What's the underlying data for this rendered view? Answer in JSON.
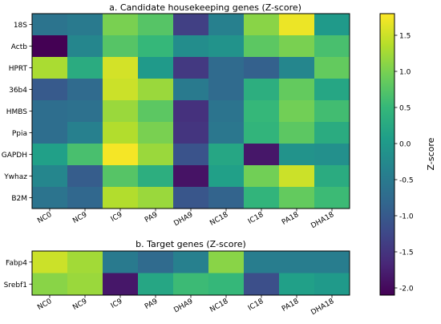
{
  "colors": {
    "scale": [
      "#440154",
      "#482878",
      "#3e4989",
      "#31688e",
      "#26828e",
      "#1f9e89",
      "#35b779",
      "#6ece58",
      "#b5de2b",
      "#fde725"
    ],
    "frame": "#000000"
  },
  "chart_data": [
    {
      "type": "heatmap",
      "title": "a. Candidate housekeeping genes (Z-score)",
      "columns": [
        "NC0",
        "NC9",
        "IC9",
        "PA9",
        "DHA9",
        "NC18",
        "IC18",
        "PA18",
        "DHA18"
      ],
      "rows": [
        "18S",
        "Actb",
        "HPRT",
        "36b4",
        "HMBS",
        "Ppia",
        "GAPDH",
        "Ywhaz",
        "B2M"
      ],
      "values": [
        [
          -0.6,
          -0.5,
          1.0,
          0.75,
          -1.35,
          -0.4,
          1.1,
          1.7,
          0.0
        ],
        [
          -2.1,
          -0.3,
          0.75,
          0.5,
          -0.2,
          -0.1,
          0.8,
          1.0,
          0.65
        ],
        [
          1.3,
          0.3,
          1.55,
          0.0,
          -1.45,
          -0.75,
          -0.9,
          -0.3,
          0.85
        ],
        [
          -1.0,
          -0.75,
          1.5,
          1.2,
          -0.5,
          -0.75,
          0.35,
          0.85,
          0.2
        ],
        [
          -0.7,
          -0.65,
          1.2,
          0.8,
          -1.55,
          -0.6,
          0.5,
          0.95,
          0.6
        ],
        [
          -0.7,
          -0.4,
          1.35,
          1.0,
          -1.5,
          -0.55,
          0.45,
          0.8,
          0.3
        ],
        [
          0.1,
          0.65,
          1.75,
          1.2,
          -1.1,
          0.2,
          -1.85,
          -0.1,
          -0.15
        ],
        [
          -0.3,
          -0.95,
          0.75,
          0.35,
          -1.9,
          0.1,
          0.95,
          1.5,
          0.3
        ],
        [
          -0.6,
          -0.8,
          1.35,
          1.2,
          -1.05,
          -0.85,
          0.45,
          0.85,
          0.55
        ]
      ],
      "vmin": -2.1,
      "vmax": 1.8
    },
    {
      "type": "heatmap",
      "title": "b. Target genes (Z-score)",
      "columns": [
        "NC0",
        "NC9",
        "IC9",
        "PA9",
        "DHA9",
        "NC18",
        "IC18",
        "PA18",
        "DHA18"
      ],
      "rows": [
        "Fabp4",
        "Srebf1"
      ],
      "values": [
        [
          1.5,
          1.25,
          -0.5,
          -0.75,
          -0.4,
          1.1,
          -0.45,
          -0.45,
          -0.45
        ],
        [
          1.1,
          1.2,
          -1.85,
          0.2,
          0.55,
          0.5,
          -1.15,
          0.1,
          0.0
        ]
      ],
      "vmin": -2.1,
      "vmax": 1.8
    }
  ],
  "colorbar": {
    "label": "Z-score",
    "ticks": [
      "-2.0",
      "-1.5",
      "-1.0",
      "-0.5",
      "0.0",
      "0.5",
      "1.0",
      "1.5"
    ],
    "tick_values": [
      -2.0,
      -1.5,
      -1.0,
      -0.5,
      0.0,
      0.5,
      1.0,
      1.5
    ],
    "vmin": -2.1,
    "vmax": 1.8
  }
}
